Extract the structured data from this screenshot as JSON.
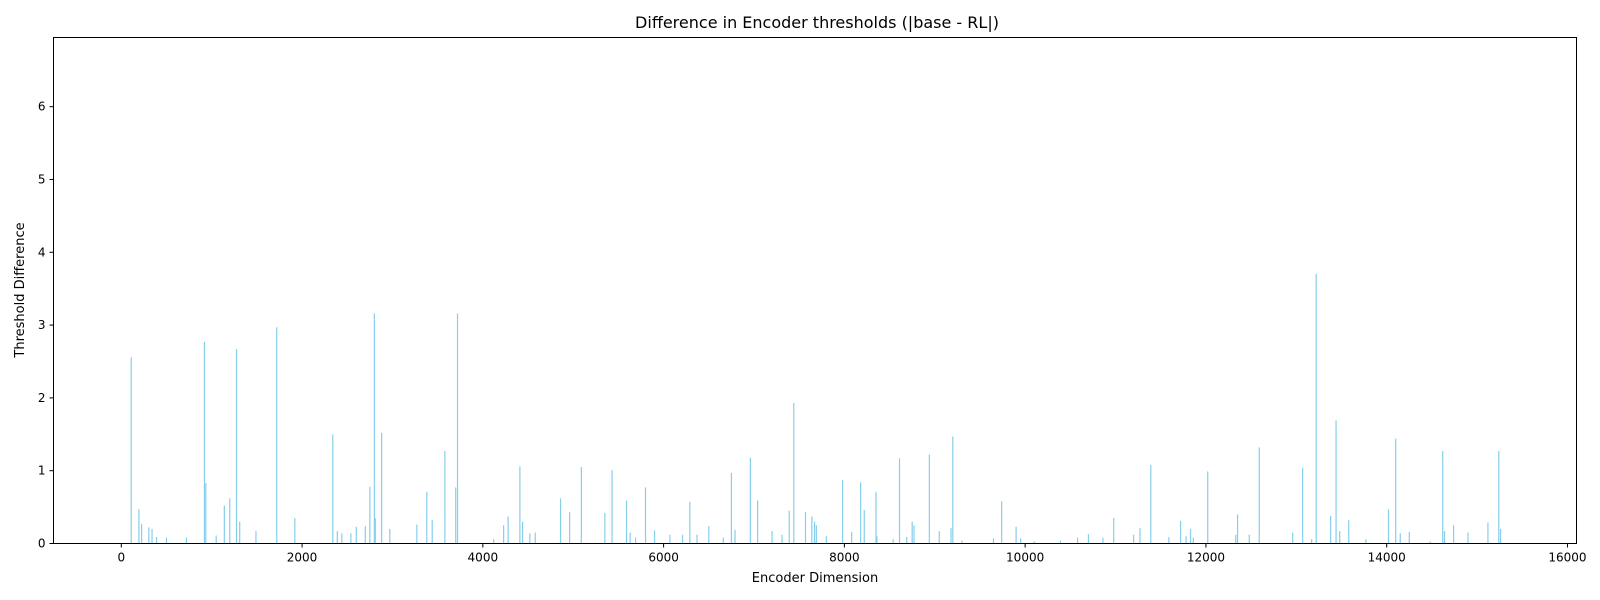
{
  "chart_data": {
    "type": "bar",
    "title": "Difference in Encoder thresholds (|base - RL|)",
    "xlabel": "Encoder Dimension",
    "ylabel": "Threshold Difference",
    "xlim": [
      -750,
      16100
    ],
    "ylim": [
      0,
      6.95
    ],
    "xticks": [
      0,
      2000,
      4000,
      6000,
      8000,
      10000,
      12000,
      14000,
      16000
    ],
    "yticks": [
      0,
      1,
      2,
      3,
      4,
      5,
      6
    ],
    "grid": false,
    "color": "#87ceeb",
    "series": [
      {
        "x": [
          110,
          195,
          225,
          305,
          340,
          390,
          500,
          720,
          920,
          935,
          1050,
          1140,
          1200,
          1275,
          1310,
          1490,
          1720,
          1920,
          2340,
          2390,
          2440,
          2540,
          2600,
          2700,
          2750,
          2800,
          2810,
          2880,
          2970,
          3270,
          3380,
          3440,
          3580,
          3700,
          3720,
          4120,
          4230,
          4280,
          4410,
          4440,
          4520,
          4580,
          4860,
          4960,
          5090,
          5350,
          5430,
          5590,
          5630,
          5690,
          5800,
          5900,
          6070,
          6210,
          6290,
          6370,
          6500,
          6660,
          6750,
          6790,
          6960,
          7040,
          7200,
          7310,
          7390,
          7440,
          7570,
          7640,
          7670,
          7690,
          7800,
          7980,
          8080,
          8180,
          8220,
          8350,
          8360,
          8540,
          8610,
          8690,
          8750,
          8770,
          8940,
          9050,
          9180,
          9200,
          9300,
          9650,
          9740,
          9900,
          9950,
          10100,
          10390,
          10580,
          10700,
          10860,
          10980,
          11200,
          11270,
          11390,
          11590,
          11720,
          11780,
          11830,
          11860,
          12020,
          12330,
          12350,
          12480,
          12590,
          12960,
          13070,
          13170,
          13220,
          13380,
          13440,
          13480,
          13580,
          13770,
          14020,
          14100,
          14150,
          14250,
          14480,
          14620,
          14640,
          14740,
          14900,
          15120,
          15240,
          15260
        ],
        "values": [
          2.56,
          0.47,
          0.27,
          0.22,
          0.2,
          0.09,
          0.08,
          0.08,
          2.77,
          0.83,
          0.11,
          0.52,
          0.62,
          2.67,
          0.3,
          0.17,
          2.97,
          0.35,
          1.5,
          0.17,
          0.14,
          0.14,
          0.23,
          0.24,
          0.78,
          3.16,
          0.35,
          1.52,
          0.2,
          0.26,
          0.71,
          0.32,
          1.27,
          0.77,
          3.16,
          0.06,
          0.25,
          0.37,
          1.06,
          0.3,
          0.14,
          0.15,
          0.62,
          0.43,
          1.05,
          0.42,
          1.01,
          0.59,
          0.15,
          0.08,
          0.77,
          0.18,
          0.12,
          0.12,
          0.57,
          0.12,
          0.24,
          0.08,
          0.97,
          0.19,
          1.18,
          0.59,
          0.17,
          0.12,
          0.45,
          1.93,
          0.43,
          0.37,
          0.3,
          0.25,
          0.1,
          0.87,
          0.16,
          0.84,
          0.46,
          0.71,
          0.1,
          0.06,
          1.17,
          0.09,
          0.3,
          0.25,
          1.22,
          0.17,
          0.21,
          1.47,
          0.04,
          0.07,
          0.58,
          0.23,
          0.07,
          0.03,
          0.04,
          0.08,
          0.13,
          0.08,
          0.35,
          0.12,
          0.21,
          1.08,
          0.09,
          0.31,
          0.1,
          0.2,
          0.08,
          0.99,
          0.12,
          0.4,
          0.12,
          1.32,
          0.15,
          1.04,
          0.06,
          3.7,
          0.38,
          1.69,
          0.17,
          0.32,
          0.06,
          0.47,
          1.44,
          0.14,
          0.16,
          0.03,
          1.27,
          0.17,
          0.25,
          0.15,
          0.29,
          1.27,
          0.2
        ]
      }
    ]
  }
}
